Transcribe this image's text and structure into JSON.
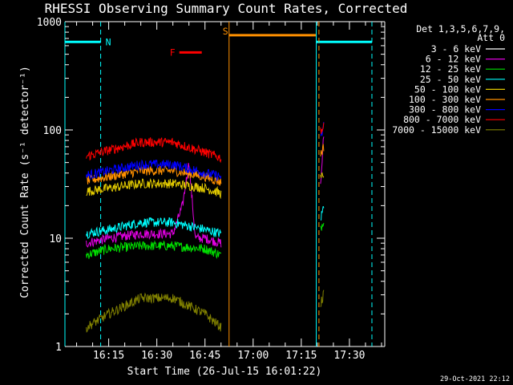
{
  "chart_data": {
    "type": "line",
    "title": "RHESSI Observing Summary Count Rates, Corrected",
    "xlabel": "Start Time (26-Jul-15 16:01:22)",
    "ylabel": "Corrected Count Rate (s⁻¹ detector⁻¹)",
    "yscale": "log",
    "ylim": [
      1,
      1000
    ],
    "xlim": [
      "16:01:22",
      "17:41:00"
    ],
    "x_ticks": [
      "16:15",
      "16:30",
      "16:45",
      "17:00",
      "17:15",
      "17:30"
    ],
    "y_ticks": [
      "1",
      "10",
      "100",
      "1000"
    ],
    "grid": false,
    "legend": {
      "position": "top-right",
      "header": [
        "Det 1,3,5,6,7,9,",
        "Att 0"
      ],
      "entries": [
        {
          "label": "3 - 6 keV",
          "color": "#000000"
        },
        {
          "label": "6 - 12 keV",
          "color": "#e000e0"
        },
        {
          "label": "12 - 25 keV",
          "color": "#00e000"
        },
        {
          "label": "25 - 50 keV",
          "color": "#00ffff"
        },
        {
          "label": "50 - 100 keV",
          "color": "#e0c800"
        },
        {
          "label": "100 - 300 keV",
          "color": "#ff9000"
        },
        {
          "label": "300 - 800 keV",
          "color": "#0000ff"
        },
        {
          "label": "800 - 7000 keV",
          "color": "#ff0000"
        },
        {
          "label": "7000 - 15000 keV",
          "color": "#808000"
        }
      ]
    },
    "series": [
      {
        "name": "3 - 6 keV",
        "color": "#000000",
        "segments": [
          {
            "x": [
              "16:08",
              "16:15",
              "16:25",
              "16:35",
              "16:45",
              "16:50"
            ],
            "y": [
              25,
              26,
              27,
              27,
              27,
              25
            ]
          },
          {
            "x": [
              "17:21",
              "17:22"
            ],
            "y": [
              18,
              26
            ]
          }
        ]
      },
      {
        "name": "6 - 12 keV",
        "color": "#e000e0",
        "segments": [
          {
            "x": [
              "16:08",
              "16:15",
              "16:25",
              "16:35",
              "16:38",
              "16:40",
              "16:42",
              "16:45",
              "16:50"
            ],
            "y": [
              9,
              10,
              11,
              11,
              20,
              50,
              10,
              10,
              9
            ]
          },
          {
            "x": [
              "17:21",
              "17:22"
            ],
            "y": [
              30,
              90
            ]
          }
        ]
      },
      {
        "name": "12 - 25 keV",
        "color": "#00e000",
        "segments": [
          {
            "x": [
              "16:08",
              "16:15",
              "16:25",
              "16:35",
              "16:45",
              "16:50"
            ],
            "y": [
              7,
              8,
              8.5,
              8.5,
              8,
              7
            ]
          },
          {
            "x": [
              "17:21",
              "17:22"
            ],
            "y": [
              12,
              15
            ]
          }
        ]
      },
      {
        "name": "25 - 50 keV",
        "color": "#00ffff",
        "segments": [
          {
            "x": [
              "16:08",
              "16:15",
              "16:25",
              "16:35",
              "16:45",
              "16:50"
            ],
            "y": [
              11,
              12,
              14,
              14,
              12,
              11
            ]
          },
          {
            "x": [
              "17:21",
              "17:22"
            ],
            "y": [
              15,
              20
            ]
          }
        ]
      },
      {
        "name": "50 - 100 keV",
        "color": "#e0c800",
        "segments": [
          {
            "x": [
              "16:08",
              "16:15",
              "16:25",
              "16:35",
              "16:45",
              "16:50"
            ],
            "y": [
              27,
              29,
              32,
              32,
              29,
              26
            ]
          },
          {
            "x": [
              "17:21",
              "17:22"
            ],
            "y": [
              35,
              40
            ]
          }
        ]
      },
      {
        "name": "100 - 300 keV",
        "color": "#ff9000",
        "segments": [
          {
            "x": [
              "16:08",
              "16:15",
              "16:25",
              "16:35",
              "16:45",
              "16:50"
            ],
            "y": [
              34,
              37,
              42,
              42,
              37,
              33
            ]
          },
          {
            "x": [
              "17:21",
              "17:22"
            ],
            "y": [
              60,
              70
            ]
          }
        ]
      },
      {
        "name": "300 - 800 keV",
        "color": "#0000ff",
        "segments": [
          {
            "x": [
              "16:08",
              "16:15",
              "16:25",
              "16:35",
              "16:45",
              "16:50"
            ],
            "y": [
              38,
              42,
              48,
              48,
              40,
              37
            ]
          },
          {
            "x": [
              "17:21",
              "17:22"
            ],
            "y": [
              80,
              110
            ]
          }
        ]
      },
      {
        "name": "800 - 7000 keV",
        "color": "#ff0000",
        "segments": [
          {
            "x": [
              "16:08",
              "16:15",
              "16:25",
              "16:35",
              "16:45",
              "16:50"
            ],
            "y": [
              57,
              65,
              77,
              77,
              62,
              55
            ]
          },
          {
            "x": [
              "17:21",
              "17:22"
            ],
            "y": [
              100,
              105
            ]
          }
        ]
      },
      {
        "name": "7000 - 15000 keV",
        "color": "#808000",
        "segments": [
          {
            "x": [
              "16:08",
              "16:15",
              "16:25",
              "16:35",
              "16:45",
              "16:50"
            ],
            "y": [
              1.5,
              2,
              2.8,
              2.8,
              2,
              1.5
            ]
          },
          {
            "x": [
              "17:21",
              "17:22"
            ],
            "y": [
              2.5,
              3
            ]
          }
        ]
      }
    ],
    "annotations": {
      "saa_bars": {
        "color": "#00ffff",
        "y": 650,
        "spans": [
          [
            "16:01:22",
            "16:12:30"
          ],
          [
            "17:19:40",
            "17:37:00"
          ]
        ]
      },
      "saa_lines": {
        "color": "#00ffff",
        "solid": [
          "16:01:22",
          "17:19:40"
        ],
        "dashed": [
          "16:12:30",
          "17:37:00"
        ]
      },
      "saa_label": {
        "text": "N",
        "x": "16:13"
      },
      "night_bar": {
        "color": "#ff9000",
        "y": 750,
        "span": [
          "16:52:30",
          "17:19:30"
        ]
      },
      "night_lines": {
        "color": "#ff9000",
        "solid": [
          "16:52:30"
        ],
        "dashed": [
          "17:20:30"
        ]
      },
      "night_label": {
        "text": "S",
        "x": "16:51"
      },
      "flare_bar": {
        "color": "#ff0000",
        "y": 520,
        "span": [
          "16:37:00",
          "16:44:00"
        ]
      },
      "flare_label": {
        "text": "F",
        "x": "16:35"
      }
    },
    "timestamp": "29-Oct-2021 22:12"
  }
}
